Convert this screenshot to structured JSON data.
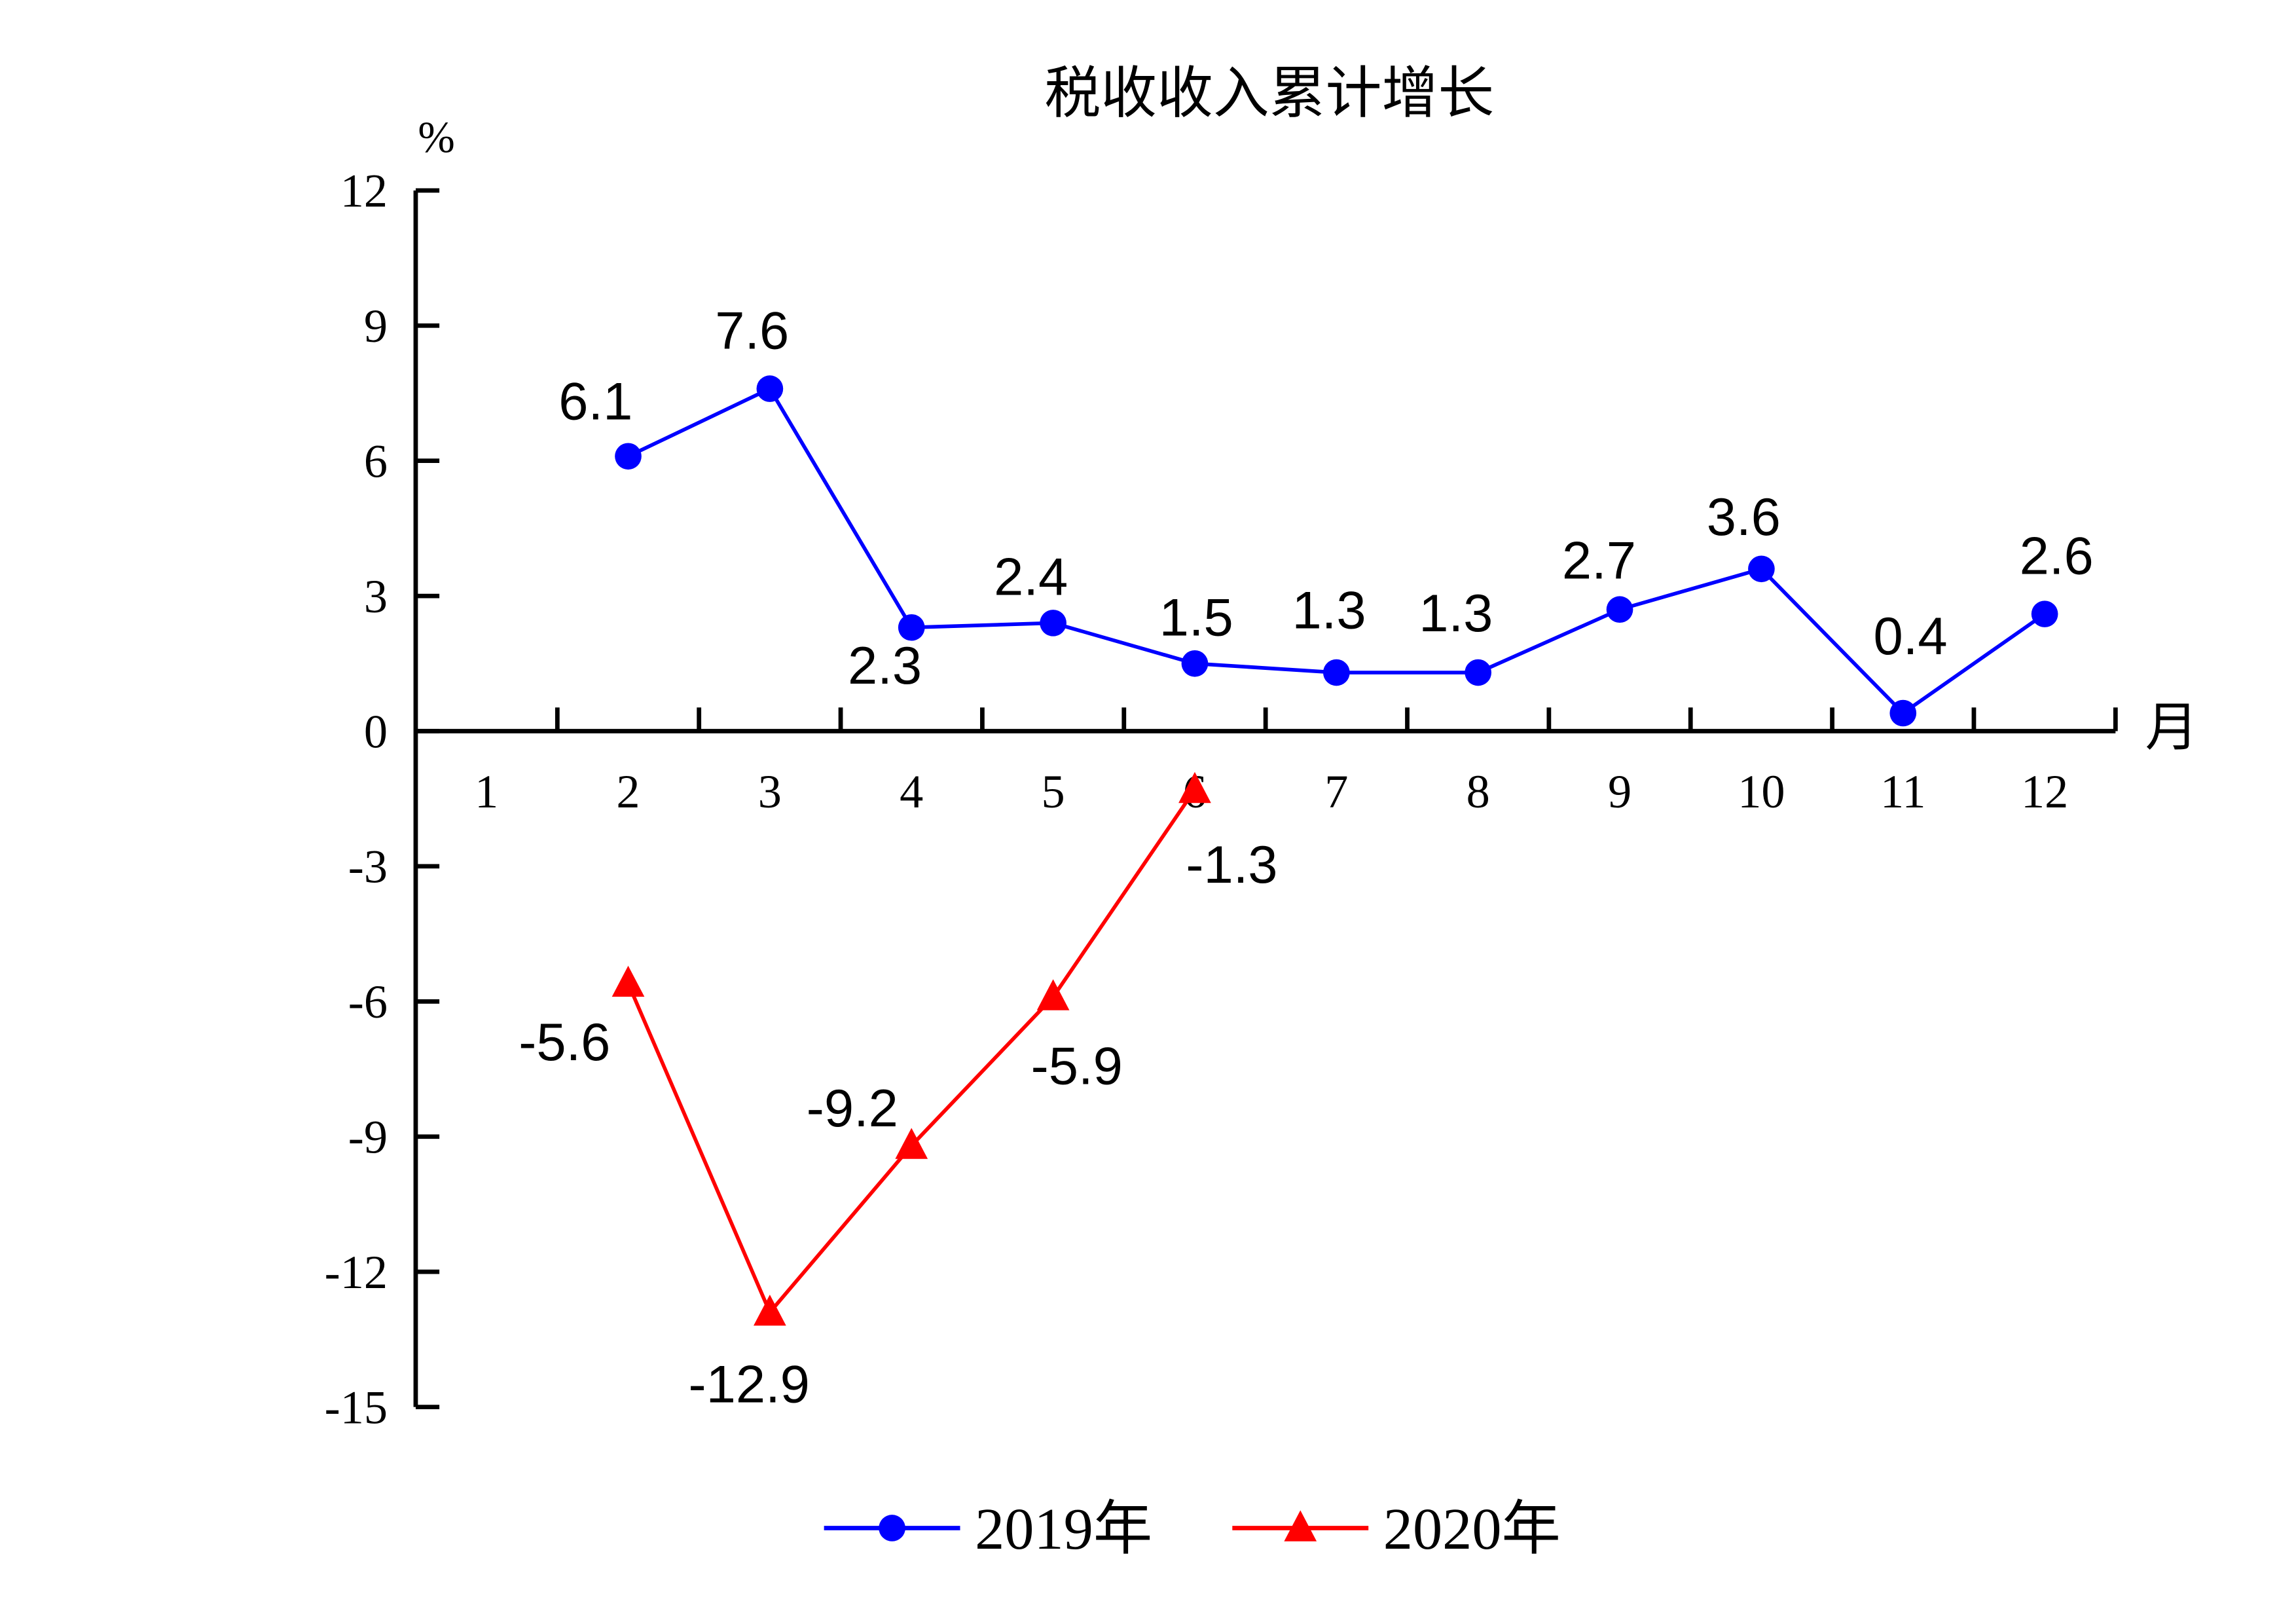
{
  "chart_data": {
    "type": "line",
    "title": "税收收入累计增长",
    "ylabel": "%",
    "xlabel": "月",
    "categories": [
      "1",
      "2",
      "3",
      "4",
      "5",
      "6",
      "7",
      "8",
      "9",
      "10",
      "11",
      "12"
    ],
    "ylim": [
      -15,
      12
    ],
    "yticks": [
      12,
      9,
      6,
      3,
      0,
      -3,
      -6,
      -9,
      -12,
      -15
    ],
    "grid": false,
    "legend": "bottom",
    "series": [
      {
        "name": "2019年",
        "color": "#0000FF",
        "marker": "circle",
        "values": [
          null,
          6.1,
          7.6,
          2.3,
          2.4,
          1.5,
          1.3,
          1.3,
          2.7,
          3.6,
          0.4,
          2.6
        ]
      },
      {
        "name": "2020年",
        "color": "#FF0000",
        "marker": "triangle",
        "values": [
          null,
          -5.6,
          -12.9,
          -9.2,
          -5.9,
          -1.3,
          null,
          null,
          null,
          null,
          null,
          null
        ]
      }
    ]
  }
}
